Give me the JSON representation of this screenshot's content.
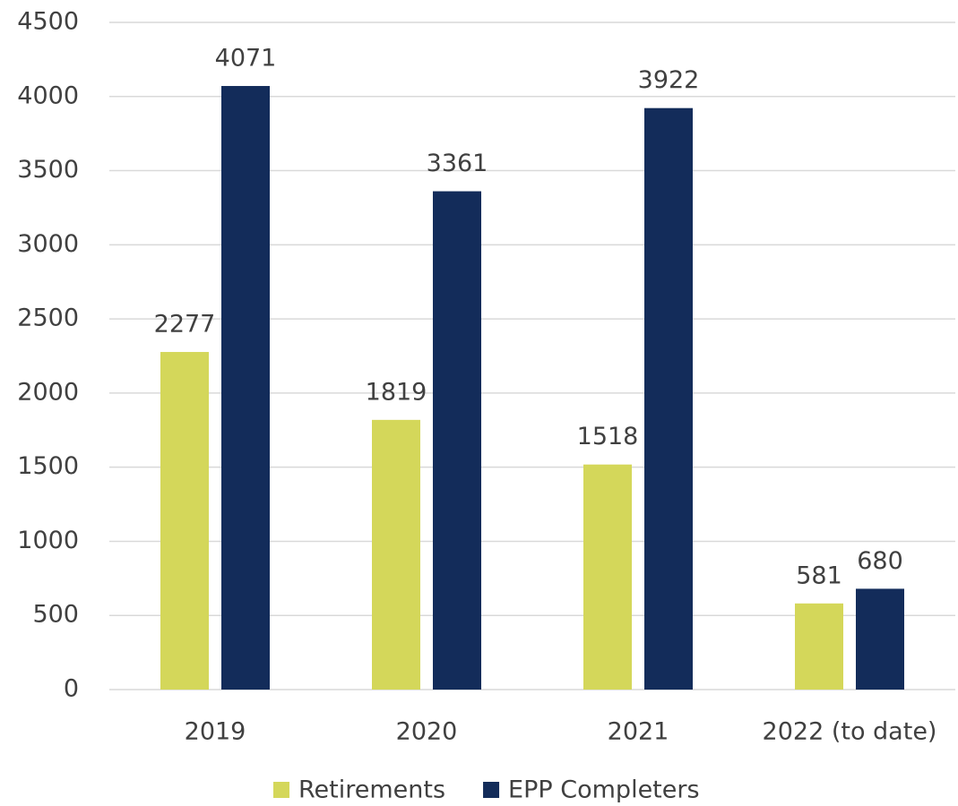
{
  "chart_data": {
    "type": "bar",
    "categories": [
      "2019",
      "2020",
      "2021",
      "2022 (to date)"
    ],
    "series": [
      {
        "name": "Retirements",
        "color": "#d4d75a",
        "values": [
          2277,
          1819,
          1518,
          581
        ]
      },
      {
        "name": "EPP Completers",
        "color": "#132c5a",
        "values": [
          4071,
          3361,
          3922,
          680
        ]
      }
    ],
    "ylim": [
      0,
      4500
    ],
    "yticks": [
      0,
      500,
      1000,
      1500,
      2000,
      2500,
      3000,
      3500,
      4000,
      4500
    ],
    "grid": true,
    "legend": "bottom"
  }
}
